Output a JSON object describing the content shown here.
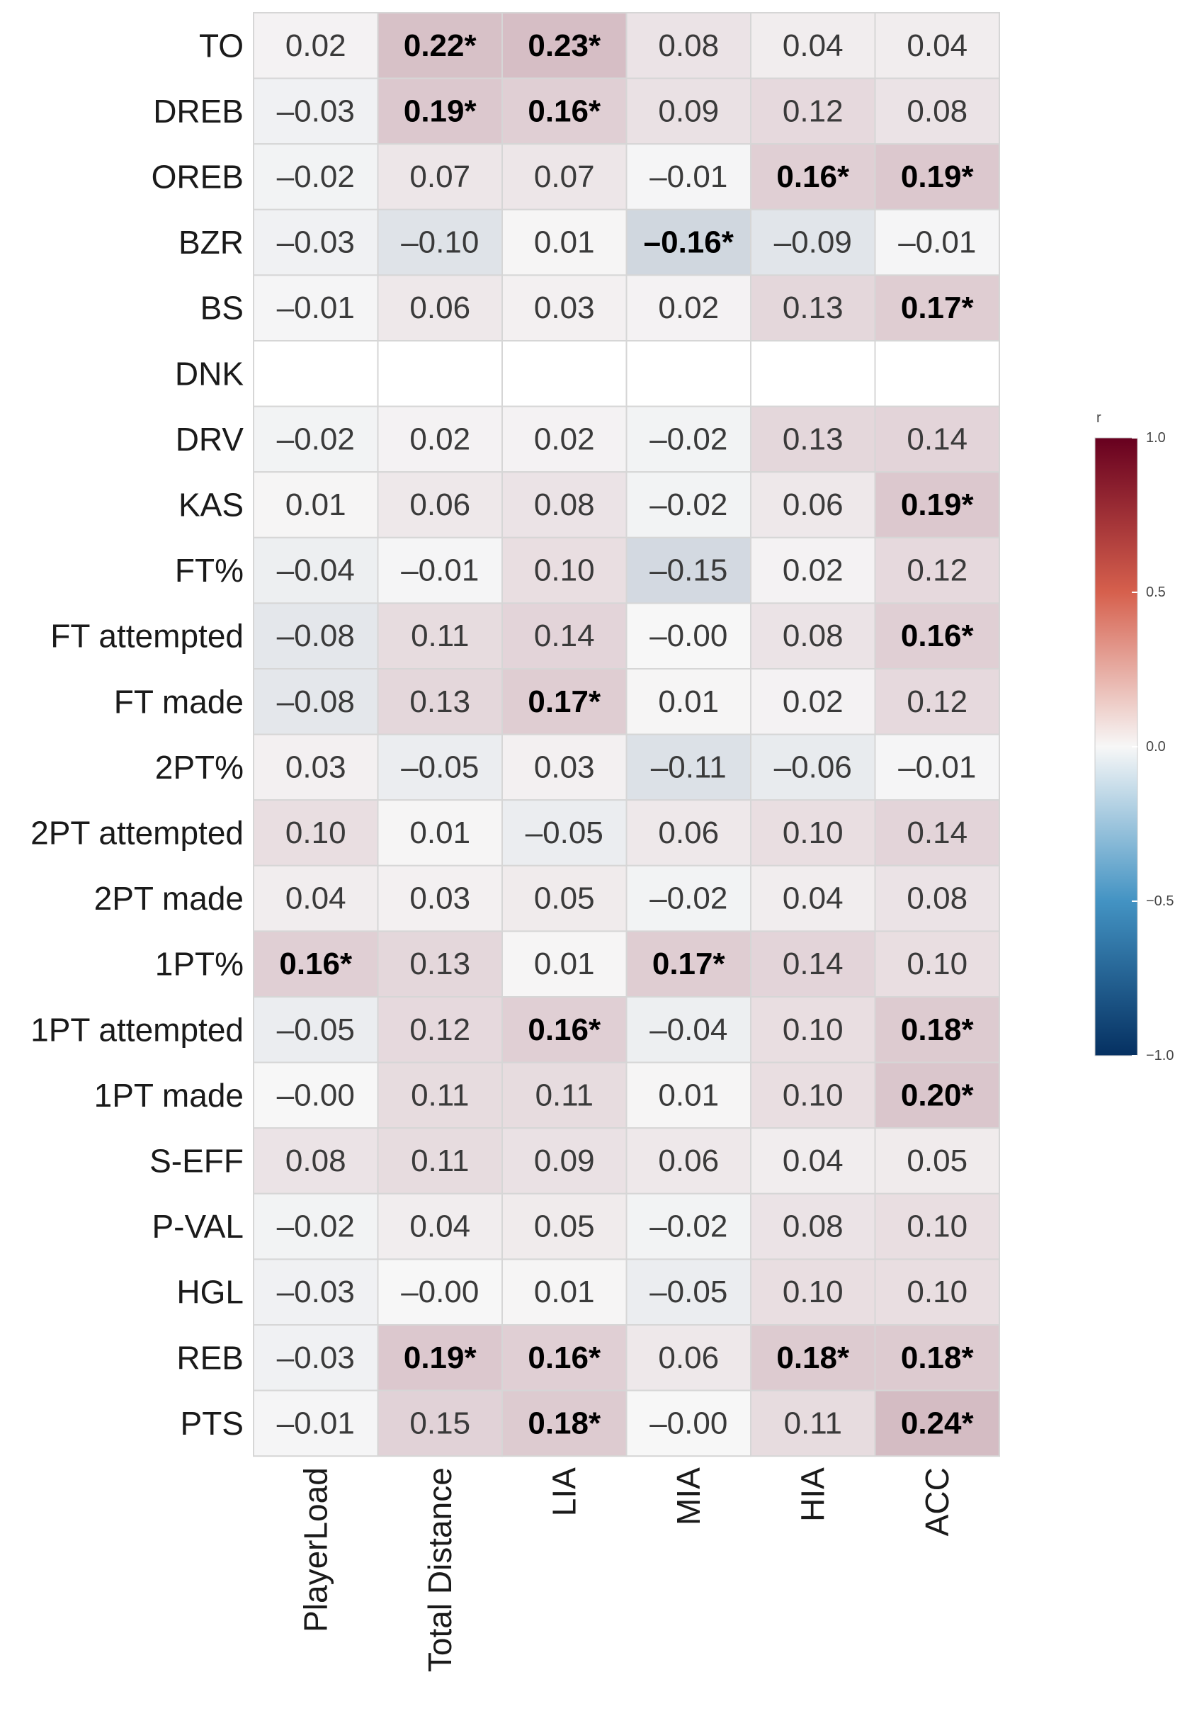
{
  "chart_data": {
    "type": "heatmap",
    "title": "",
    "x_categories": [
      "PlayerLoad",
      "Total Distance",
      "LIA",
      "MIA",
      "HIA",
      "ACC"
    ],
    "y_categories": [
      "TO",
      "DREB",
      "OREB",
      "BZR",
      "BS",
      "DNK",
      "DRV",
      "KAS",
      "FT%",
      "FT attempted",
      "FT made",
      "2PT%",
      "2PT attempted",
      "2PT made",
      "1PT%",
      "1PT attempted",
      "1PT made",
      "S-EFF",
      "P-VAL",
      "HGL",
      "REB",
      "PTS"
    ],
    "values": [
      [
        0.02,
        0.22,
        0.23,
        0.08,
        0.04,
        0.04
      ],
      [
        -0.03,
        0.19,
        0.16,
        0.09,
        0.12,
        0.08
      ],
      [
        -0.02,
        0.07,
        0.07,
        -0.01,
        0.16,
        0.19
      ],
      [
        -0.03,
        -0.1,
        0.01,
        -0.16,
        -0.09,
        -0.01
      ],
      [
        -0.01,
        0.06,
        0.03,
        0.02,
        0.13,
        0.17
      ],
      [
        null,
        null,
        null,
        null,
        null,
        null
      ],
      [
        -0.02,
        0.02,
        0.02,
        -0.02,
        0.13,
        0.14
      ],
      [
        0.01,
        0.06,
        0.08,
        -0.02,
        0.06,
        0.19
      ],
      [
        -0.04,
        -0.01,
        0.1,
        -0.15,
        0.02,
        0.12
      ],
      [
        -0.08,
        0.11,
        0.14,
        -0.0,
        0.08,
        0.16
      ],
      [
        -0.08,
        0.13,
        0.17,
        0.01,
        0.02,
        0.12
      ],
      [
        0.03,
        -0.05,
        0.03,
        -0.11,
        -0.06,
        -0.01
      ],
      [
        0.1,
        0.01,
        -0.05,
        0.06,
        0.1,
        0.14
      ],
      [
        0.04,
        0.03,
        0.05,
        -0.02,
        0.04,
        0.08
      ],
      [
        0.16,
        0.13,
        0.01,
        0.17,
        0.14,
        0.1
      ],
      [
        -0.05,
        0.12,
        0.16,
        -0.04,
        0.1,
        0.18
      ],
      [
        -0.0,
        0.11,
        0.11,
        0.01,
        0.1,
        0.2
      ],
      [
        0.08,
        0.11,
        0.09,
        0.06,
        0.04,
        0.05
      ],
      [
        -0.02,
        0.04,
        0.05,
        -0.02,
        0.08,
        0.1
      ],
      [
        -0.03,
        -0.0,
        0.01,
        -0.05,
        0.1,
        0.1
      ],
      [
        -0.03,
        0.19,
        0.16,
        0.06,
        0.18,
        0.18
      ],
      [
        -0.01,
        0.15,
        0.18,
        -0.0,
        0.11,
        0.24
      ]
    ],
    "labels": [
      [
        "0.02",
        "0.22*",
        "0.23*",
        "0.08",
        "0.04",
        "0.04"
      ],
      [
        "–0.03",
        "0.19*",
        "0.16*",
        "0.09",
        "0.12",
        "0.08"
      ],
      [
        "–0.02",
        "0.07",
        "0.07",
        "–0.01",
        "0.16*",
        "0.19*"
      ],
      [
        "–0.03",
        "–0.10",
        "0.01",
        "–0.16*",
        "–0.09",
        "–0.01"
      ],
      [
        "–0.01",
        "0.06",
        "0.03",
        "0.02",
        "0.13",
        "0.17*"
      ],
      [
        "",
        "",
        "",
        "",
        "",
        ""
      ],
      [
        "–0.02",
        "0.02",
        "0.02",
        "–0.02",
        "0.13",
        "0.14"
      ],
      [
        "0.01",
        "0.06",
        "0.08",
        "–0.02",
        "0.06",
        "0.19*"
      ],
      [
        "–0.04",
        "–0.01",
        "0.10",
        "–0.15",
        "0.02",
        "0.12"
      ],
      [
        "–0.08",
        "0.11",
        "0.14",
        "–0.00",
        "0.08",
        "0.16*"
      ],
      [
        "–0.08",
        "0.13",
        "0.17*",
        "0.01",
        "0.02",
        "0.12"
      ],
      [
        "0.03",
        "–0.05",
        "0.03",
        "–0.11",
        "–0.06",
        "–0.01"
      ],
      [
        "0.10",
        "0.01",
        "–0.05",
        "0.06",
        "0.10",
        "0.14"
      ],
      [
        "0.04",
        "0.03",
        "0.05",
        "–0.02",
        "0.04",
        "0.08"
      ],
      [
        "0.16*",
        "0.13",
        "0.01",
        "0.17*",
        "0.14",
        "0.10"
      ],
      [
        "–0.05",
        "0.12",
        "0.16*",
        "–0.04",
        "0.10",
        "0.18*"
      ],
      [
        "–0.00",
        "0.11",
        "0.11",
        "0.01",
        "0.10",
        "0.20*"
      ],
      [
        "0.08",
        "0.11",
        "0.09",
        "0.06",
        "0.04",
        "0.05"
      ],
      [
        "–0.02",
        "0.04",
        "0.05",
        "–0.02",
        "0.08",
        "0.10"
      ],
      [
        "–0.03",
        "–0.00",
        "0.01",
        "–0.05",
        "0.10",
        "0.10"
      ],
      [
        "–0.03",
        "0.19*",
        "0.16*",
        "0.06",
        "0.18*",
        "0.18*"
      ],
      [
        "–0.01",
        "0.15",
        "0.18*",
        "–0.00",
        "0.11",
        "0.24*"
      ]
    ],
    "legend": {
      "title": "r",
      "range": [
        -1.0,
        1.0
      ],
      "ticks": [
        1.0,
        0.5,
        0.0,
        -0.5,
        -1.0
      ],
      "tick_labels": [
        "1.0",
        "0.5",
        "0.0",
        "−0.5",
        "−1.0"
      ],
      "placement": "right"
    },
    "colors": {
      "high": "#67001f",
      "mid": "#f7f7f7",
      "low": "#053061",
      "cell_border": "#d6d6d6"
    }
  }
}
